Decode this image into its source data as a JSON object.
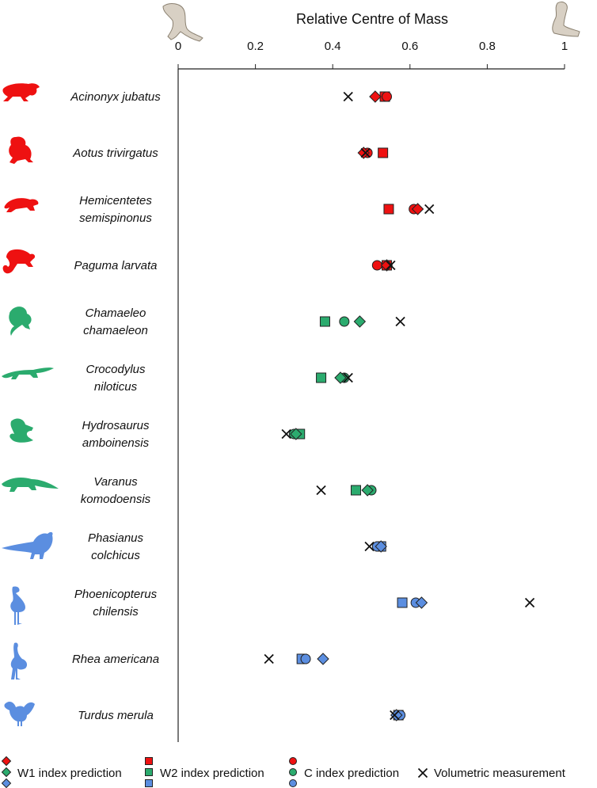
{
  "chart_data": {
    "type": "scatter",
    "title": "",
    "xlabel": "Relative Centre of Mass",
    "ylabel": "",
    "xlim": [
      0,
      1
    ],
    "xticks": [
      0,
      0.2,
      0.4,
      0.6,
      0.8,
      1
    ],
    "xtick_labels": [
      "0",
      "0.2",
      "0.4",
      "0.6",
      "0.8",
      "1"
    ],
    "x_axis_position": "top",
    "grid": false,
    "legend_position": "bottom",
    "group_colors": {
      "mammal": "#ee1111",
      "reptile": "#2bab6e",
      "bird": "#5b8ee0"
    },
    "species": [
      {
        "name_lines": [
          "Acinonyx jubatus"
        ],
        "group": "mammal",
        "icon": "cheetah-silhouette-icon"
      },
      {
        "name_lines": [
          "Aotus trivirgatus"
        ],
        "group": "mammal",
        "icon": "night-monkey-silhouette-icon"
      },
      {
        "name_lines": [
          "Hemicentetes",
          "semispinonus"
        ],
        "group": "mammal",
        "icon": "tenrec-silhouette-icon"
      },
      {
        "name_lines": [
          "Paguma larvata"
        ],
        "group": "mammal",
        "icon": "civet-silhouette-icon"
      },
      {
        "name_lines": [
          "Chamaeleo",
          "chamaeleon"
        ],
        "group": "reptile",
        "icon": "chameleon-silhouette-icon"
      },
      {
        "name_lines": [
          "Crocodylus",
          "niloticus"
        ],
        "group": "reptile",
        "icon": "crocodile-silhouette-icon"
      },
      {
        "name_lines": [
          "Hydrosaurus",
          "amboinensis"
        ],
        "group": "reptile",
        "icon": "sailfin-lizard-silhouette-icon"
      },
      {
        "name_lines": [
          "Varanus",
          "komodoensis"
        ],
        "group": "reptile",
        "icon": "komodo-dragon-silhouette-icon"
      },
      {
        "name_lines": [
          "Phasianus",
          "colchicus"
        ],
        "group": "bird",
        "icon": "pheasant-silhouette-icon"
      },
      {
        "name_lines": [
          "Phoenicopterus",
          "chilensis"
        ],
        "group": "bird",
        "icon": "flamingo-silhouette-icon"
      },
      {
        "name_lines": [
          "Rhea americana"
        ],
        "group": "bird",
        "icon": "rhea-silhouette-icon"
      },
      {
        "name_lines": [
          "Turdus merula"
        ],
        "group": "bird",
        "icon": "blackbird-silhouette-icon"
      }
    ],
    "series": [
      {
        "name": "W1 index prediction",
        "marker": "diamond",
        "values": [
          0.51,
          0.48,
          0.62,
          0.54,
          0.47,
          0.42,
          0.305,
          0.49,
          0.525,
          0.63,
          0.375,
          0.565
        ]
      },
      {
        "name": "W2 index prediction",
        "marker": "square",
        "values": [
          0.535,
          0.53,
          0.545,
          0.54,
          0.38,
          0.37,
          0.315,
          0.46,
          0.525,
          0.58,
          0.32,
          0.57
        ]
      },
      {
        "name": "C index prediction",
        "marker": "circle",
        "values": [
          0.54,
          0.49,
          0.61,
          0.515,
          0.43,
          0.43,
          0.3,
          0.5,
          0.515,
          0.615,
          0.33,
          0.575
        ]
      },
      {
        "name": "Volumetric measurement",
        "marker": "cross",
        "values": [
          0.44,
          0.485,
          0.65,
          0.55,
          0.575,
          0.44,
          0.28,
          0.37,
          0.495,
          0.91,
          0.235,
          0.56
        ]
      }
    ]
  }
}
